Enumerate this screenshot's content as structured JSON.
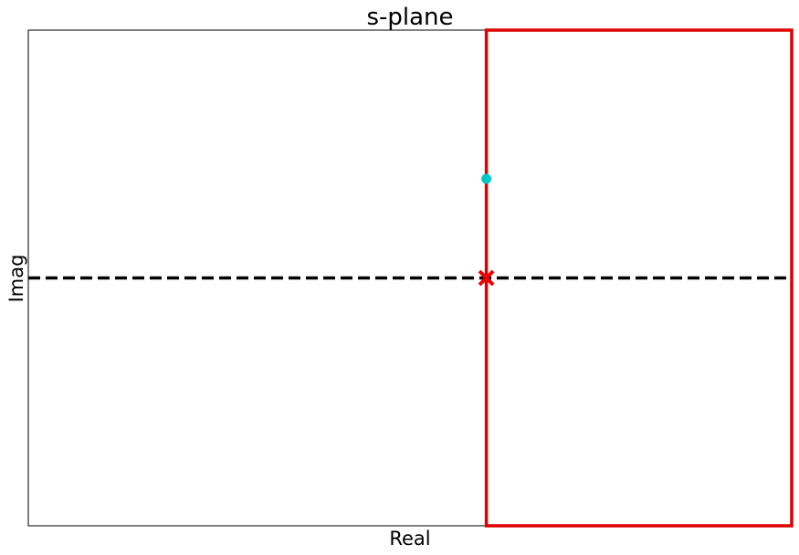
{
  "chart_data": {
    "type": "scatter",
    "title": "s-plane",
    "xlabel": "Real",
    "ylabel": "Imag",
    "xlim": [
      -3,
      2
    ],
    "ylim": [
      -5,
      5
    ],
    "grid": false,
    "ticks_visible": false,
    "reference_lines": [
      {
        "name": "real-axis-line",
        "orientation": "horizontal",
        "value": 0,
        "style": "dashed",
        "color": "#000000"
      }
    ],
    "regions": [
      {
        "name": "right-half-plane",
        "x_range": [
          0,
          2
        ],
        "y_range": [
          -5,
          5
        ],
        "edge_color": "#dd0000",
        "fill": "none"
      }
    ],
    "series": [
      {
        "marker": "x",
        "color": "#ee0000",
        "points": [
          {
            "x": 0,
            "y": 0
          }
        ]
      },
      {
        "marker": "circle",
        "color": "#00c8c8",
        "points": [
          {
            "x": 0,
            "y": 2
          }
        ]
      }
    ]
  }
}
